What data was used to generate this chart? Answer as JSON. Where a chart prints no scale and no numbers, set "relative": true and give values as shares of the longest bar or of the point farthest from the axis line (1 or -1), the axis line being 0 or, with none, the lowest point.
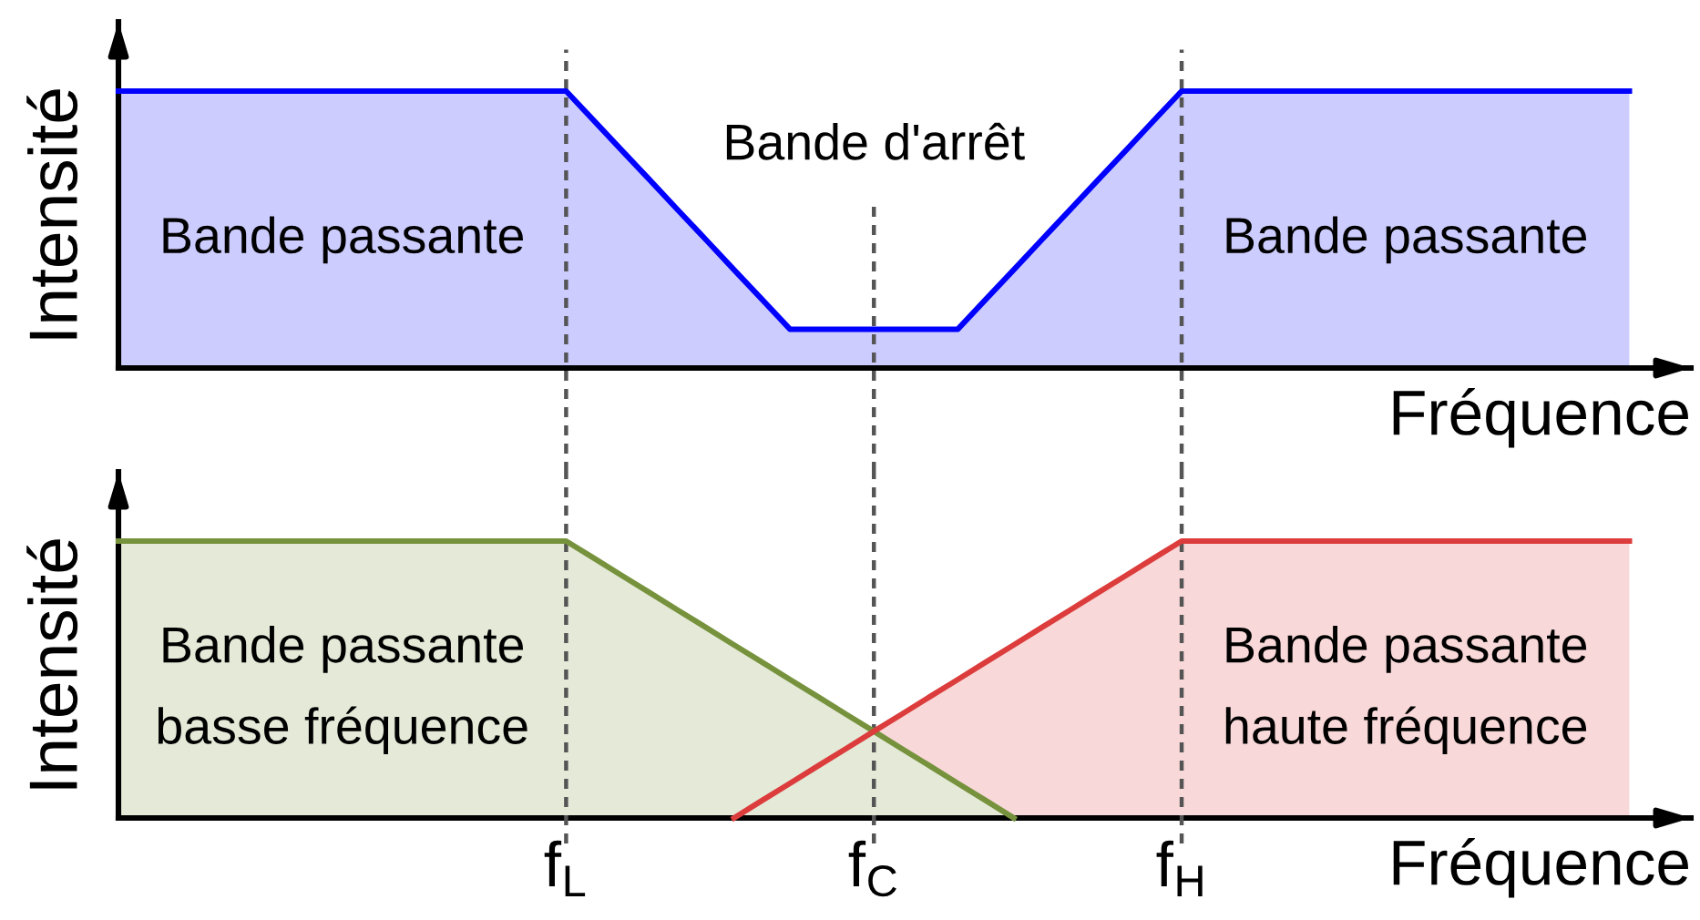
{
  "chart_data": [
    {
      "type": "area",
      "relative": true,
      "ylabel": "Intensité",
      "xlabel": "Fréquence",
      "categories": [
        null,
        null,
        null,
        null,
        null,
        null,
        null,
        null,
        null,
        null,
        null,
        null,
        null,
        null,
        null,
        null,
        "f$_{L}$",
        null,
        null,
        null,
        null,
        null,
        null,
        null,
        null,
        null,
        null,
        "f$_{C}$",
        null,
        null,
        null,
        null,
        null,
        null,
        null,
        null,
        null,
        null,
        "f$_{H}$",
        null,
        null,
        null,
        null,
        null,
        null,
        null,
        null,
        null,
        null,
        null,
        null,
        null,
        null,
        null,
        null
      ],
      "series": [
        {
          "color": "#0000ff",
          "values": [
            1,
            1,
            1,
            1,
            1,
            1,
            1,
            1,
            1,
            1,
            1,
            1,
            1,
            1,
            1,
            1,
            1,
            0.893,
            0.785,
            0.678,
            0.57,
            0.463,
            0.355,
            0.248,
            0.14,
            0.14,
            0.14,
            0.14,
            0.14,
            0.14,
            0.14,
            0.248,
            0.355,
            0.463,
            0.57,
            0.678,
            0.785,
            0.893,
            1,
            1,
            1,
            1,
            1,
            1,
            1,
            1,
            1,
            1,
            1,
            1,
            1,
            1,
            1,
            1,
            1
          ]
        }
      ],
      "tick_labels": false,
      "ref_lines": [
        {
          "axis": "x",
          "value": "f$_{L}$",
          "color": "#555555",
          "line_style": "dashed"
        },
        {
          "axis": "x",
          "value": "f$_{C}$",
          "color": "#555555",
          "line_style": "dashed"
        },
        {
          "axis": "x",
          "value": "f$_{H}$",
          "color": "#555555",
          "line_style": "dashed"
        }
      ],
      "annotations": [
        "Bande passante",
        "Bande d'arrêt",
        "Bande passante"
      ]
    },
    {
      "type": "area",
      "relative": true,
      "ylabel": "Intensité",
      "xlabel": "Fréquence",
      "categories": [
        null,
        null,
        null,
        null,
        null,
        null,
        null,
        null,
        null,
        null,
        null,
        null,
        null,
        null,
        null,
        null,
        "f$_{L}$",
        null,
        null,
        null,
        null,
        null,
        null,
        null,
        null,
        null,
        null,
        "f$_{C}$",
        null,
        null,
        null,
        null,
        null,
        null,
        null,
        null,
        null,
        null,
        "f$_{H}$",
        null,
        null,
        null,
        null,
        null,
        null,
        null,
        null,
        null,
        null,
        null,
        null,
        null,
        null,
        null,
        null
      ],
      "series": [
        {
          "color": "#76923c",
          "values": [
            1,
            1,
            1,
            1,
            1,
            1,
            1,
            1,
            1,
            1,
            1,
            1,
            1,
            1,
            1,
            1,
            1,
            0.938,
            0.875,
            0.813,
            0.75,
            0.688,
            0.625,
            0.563,
            0.5,
            0.438,
            0.375,
            0.313,
            0.25,
            0.188,
            0.125,
            0.063,
            0,
            null,
            null,
            null,
            null,
            null,
            null,
            null,
            null,
            null,
            null,
            null,
            null,
            null,
            null,
            null,
            null,
            null,
            null,
            null,
            null,
            null,
            null
          ]
        },
        {
          "color": "#dc3c3c",
          "values": [
            null,
            null,
            null,
            null,
            null,
            null,
            null,
            null,
            null,
            null,
            null,
            null,
            null,
            null,
            null,
            null,
            null,
            null,
            null,
            null,
            null,
            null,
            0,
            0.063,
            0.125,
            0.188,
            0.25,
            0.313,
            0.375,
            0.438,
            0.5,
            0.563,
            0.625,
            0.688,
            0.75,
            0.813,
            0.875,
            0.938,
            1,
            1,
            1,
            1,
            1,
            1,
            1,
            1,
            1,
            1,
            1,
            1,
            1,
            1,
            1,
            1,
            1
          ]
        }
      ],
      "tick_labels": "x",
      "ref_lines": [
        {
          "axis": "x",
          "value": "f$_{L}$",
          "color": "#555555",
          "line_style": "dashed"
        },
        {
          "axis": "x",
          "value": "f$_{C}$",
          "color": "#555555",
          "line_style": "dashed"
        },
        {
          "axis": "x",
          "value": "f$_{H}$",
          "color": "#555555",
          "line_style": "dashed"
        }
      ],
      "annotations": [
        "Bande passante\nbasse fréquence",
        "Bande passante\nhaute fréquence"
      ]
    }
  ]
}
